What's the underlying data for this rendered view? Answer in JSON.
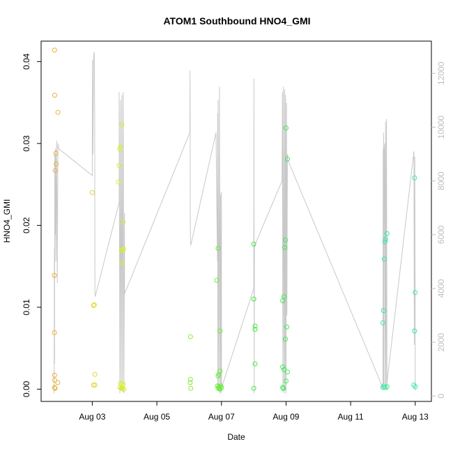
{
  "chart_data": {
    "type": "scatter",
    "title": "ATOM1 Southbound HNO4_GMI",
    "xlabel": "Date",
    "ylabel": "HNO4_GMI",
    "ylabel_right": "",
    "xlim": [
      "2016-08-01T10:00",
      "2016-08-13T12:00"
    ],
    "ylim": [
      -0.0015,
      0.0425
    ],
    "y2lim": [
      -200,
      13200
    ],
    "x_ticks": [
      {
        "value": "2016-08-03",
        "label": "Aug 03"
      },
      {
        "value": "2016-08-05",
        "label": "Aug 05"
      },
      {
        "value": "2016-08-07",
        "label": "Aug 07"
      },
      {
        "value": "2016-08-09",
        "label": "Aug 09"
      },
      {
        "value": "2016-08-11",
        "label": "Aug 11"
      },
      {
        "value": "2016-08-13",
        "label": "Aug 13"
      }
    ],
    "y_ticks": [
      {
        "value": 0.0,
        "label": "0.00"
      },
      {
        "value": 0.01,
        "label": "0.01"
      },
      {
        "value": 0.02,
        "label": "0.02"
      },
      {
        "value": 0.03,
        "label": "0.03"
      },
      {
        "value": 0.04,
        "label": "0.04"
      }
    ],
    "y2_ticks": [
      {
        "value": 0,
        "label": "0"
      },
      {
        "value": 2000,
        "label": "2000"
      },
      {
        "value": 4000,
        "label": "4000"
      },
      {
        "value": 6000,
        "label": "6000"
      },
      {
        "value": 8000,
        "label": "8000"
      },
      {
        "value": 10000,
        "label": "10000"
      },
      {
        "value": 12000,
        "label": "12000"
      }
    ],
    "grid": false,
    "colors": {
      "axis": "#000000",
      "right_axis": "#bdbdbd",
      "altitude_line": "#c8c8c8",
      "point_gradient_start": "#f0a040",
      "point_gradient_end": "#30e8c0"
    },
    "points": [
      {
        "x": "2016-08-01T20:00",
        "y": 0.0414
      },
      {
        "x": "2016-08-01T20:05",
        "y": 0.0359
      },
      {
        "x": "2016-08-01T22:30",
        "y": 0.0338
      },
      {
        "x": "2016-08-01T21:00",
        "y": 0.0288
      },
      {
        "x": "2016-08-01T21:10",
        "y": 0.0275
      },
      {
        "x": "2016-08-01T20:30",
        "y": 0.0267
      },
      {
        "x": "2016-08-01T19:50",
        "y": 0.0139
      },
      {
        "x": "2016-08-01T19:55",
        "y": 0.0069
      },
      {
        "x": "2016-08-01T20:00",
        "y": 0.0017
      },
      {
        "x": "2016-08-01T20:05",
        "y": 0.0011
      },
      {
        "x": "2016-08-01T22:20",
        "y": 0.0008
      },
      {
        "x": "2016-08-01T20:00",
        "y": 0.0002
      },
      {
        "x": "2016-08-01T20:20",
        "y": 0.0001
      },
      {
        "x": "2016-08-03T00:00",
        "y": 0.024
      },
      {
        "x": "2016-08-03T01:00",
        "y": 0.0102
      },
      {
        "x": "2016-08-03T01:30",
        "y": 0.0103
      },
      {
        "x": "2016-08-03T02:00",
        "y": 0.0018
      },
      {
        "x": "2016-08-03T01:00",
        "y": 0.0005
      },
      {
        "x": "2016-08-03T02:00",
        "y": 0.0005
      },
      {
        "x": "2016-08-03T22:00",
        "y": 0.0323
      },
      {
        "x": "2016-08-03T21:00",
        "y": 0.0296
      },
      {
        "x": "2016-08-03T20:30",
        "y": 0.0293
      },
      {
        "x": "2016-08-03T20:00",
        "y": 0.0273
      },
      {
        "x": "2016-08-03T19:30",
        "y": 0.0253
      },
      {
        "x": "2016-08-03T23:00",
        "y": 0.0204
      },
      {
        "x": "2016-08-03T21:30",
        "y": 0.0169
      },
      {
        "x": "2016-08-03T22:30",
        "y": 0.017
      },
      {
        "x": "2016-08-03T23:30",
        "y": 0.0171
      },
      {
        "x": "2016-08-03T22:00",
        "y": 0.0154
      },
      {
        "x": "2016-08-03T21:00",
        "y": 0.0007
      },
      {
        "x": "2016-08-03T22:00",
        "y": 0.0005
      },
      {
        "x": "2016-08-03T23:00",
        "y": 0.0006
      },
      {
        "x": "2016-08-03T20:30",
        "y": 0.0002
      },
      {
        "x": "2016-08-03T21:30",
        "y": 0.0001
      },
      {
        "x": "2016-08-03T22:30",
        "y": 0.0001
      },
      {
        "x": "2016-08-03T23:30",
        "y": 0.0
      },
      {
        "x": "2016-08-06T01:00",
        "y": 0.0064
      },
      {
        "x": "2016-08-06T01:00",
        "y": 0.0012
      },
      {
        "x": "2016-08-06T00:45",
        "y": 0.0008
      },
      {
        "x": "2016-08-06T01:15",
        "y": 0.0001
      },
      {
        "x": "2016-08-06T20:30",
        "y": 0.0133
      },
      {
        "x": "2016-08-06T21:30",
        "y": 0.0172
      },
      {
        "x": "2016-08-06T23:00",
        "y": 0.0071
      },
      {
        "x": "2016-08-06T22:00",
        "y": 0.0018
      },
      {
        "x": "2016-08-06T21:30",
        "y": 0.0016
      },
      {
        "x": "2016-08-06T23:00",
        "y": 0.0022
      },
      {
        "x": "2016-08-06T21:00",
        "y": 0.0004
      },
      {
        "x": "2016-08-06T22:00",
        "y": 0.0003
      },
      {
        "x": "2016-08-06T23:30",
        "y": 0.0004
      },
      {
        "x": "2016-08-07T00:00",
        "y": 0.0002
      },
      {
        "x": "2016-08-06T21:30",
        "y": 0.0001
      },
      {
        "x": "2016-08-06T22:30",
        "y": 0.0001
      },
      {
        "x": "2016-08-06T23:00",
        "y": 0.0
      },
      {
        "x": "2016-08-08T00:00",
        "y": 0.0177
      },
      {
        "x": "2016-08-08T00:00",
        "y": 0.011
      },
      {
        "x": "2016-08-08T01:00",
        "y": 0.0077
      },
      {
        "x": "2016-08-08T01:00",
        "y": 0.0073
      },
      {
        "x": "2016-08-08T01:00",
        "y": 0.0031
      },
      {
        "x": "2016-08-08T00:00",
        "y": 0.0001
      },
      {
        "x": "2016-08-09T00:00",
        "y": 0.0319
      },
      {
        "x": "2016-08-09T01:00",
        "y": 0.0281
      },
      {
        "x": "2016-08-08T23:30",
        "y": 0.0182
      },
      {
        "x": "2016-08-08T23:00",
        "y": 0.0173
      },
      {
        "x": "2016-08-08T22:30",
        "y": 0.0113
      },
      {
        "x": "2016-08-08T21:30",
        "y": 0.0108
      },
      {
        "x": "2016-08-09T00:30",
        "y": 0.0076
      },
      {
        "x": "2016-08-08T23:30",
        "y": 0.0061
      },
      {
        "x": "2016-08-08T21:30",
        "y": 0.0027
      },
      {
        "x": "2016-08-08T22:30",
        "y": 0.0024
      },
      {
        "x": "2016-08-09T01:00",
        "y": 0.0021
      },
      {
        "x": "2016-08-09T00:00",
        "y": 0.001
      },
      {
        "x": "2016-08-08T21:30",
        "y": 0.0002
      },
      {
        "x": "2016-08-08T22:00",
        "y": 0.0001
      },
      {
        "x": "2016-08-12T01:00",
        "y": 0.0159
      },
      {
        "x": "2016-08-12T00:30",
        "y": 0.0096
      },
      {
        "x": "2016-08-12T00:00",
        "y": 0.0081
      },
      {
        "x": "2016-08-12T03:00",
        "y": 0.019
      },
      {
        "x": "2016-08-12T02:00",
        "y": 0.0183
      },
      {
        "x": "2016-08-12T01:30",
        "y": 0.018
      },
      {
        "x": "2016-08-12T00:30",
        "y": 0.0004
      },
      {
        "x": "2016-08-12T03:00",
        "y": 0.0003
      },
      {
        "x": "2016-08-12T00:00",
        "y": 0.0002
      },
      {
        "x": "2016-08-12T01:30",
        "y": 0.0002
      },
      {
        "x": "2016-08-12T23:30",
        "y": 0.0258
      },
      {
        "x": "2016-08-13T00:00",
        "y": 0.0118
      },
      {
        "x": "2016-08-12T23:30",
        "y": 0.0071
      },
      {
        "x": "2016-08-12T23:00",
        "y": 0.0005
      },
      {
        "x": "2016-08-13T00:00",
        "y": 0.0003
      }
    ],
    "altitude": [
      [
        "2016-08-01T19:40",
        100
      ],
      [
        "2016-08-01T19:45",
        2000
      ],
      [
        "2016-08-01T19:50",
        5500
      ],
      [
        "2016-08-01T20:00",
        1200
      ],
      [
        "2016-08-01T20:10",
        9000
      ],
      [
        "2016-08-01T20:20",
        6000
      ],
      [
        "2016-08-01T20:40",
        9200
      ],
      [
        "2016-08-01T21:00",
        5000
      ],
      [
        "2016-08-01T21:30",
        9500
      ],
      [
        "2016-08-01T22:00",
        4200
      ],
      [
        "2016-08-01T22:30",
        9400
      ],
      [
        "2016-08-01T23:00",
        9200
      ],
      [
        "2016-08-03T00:00",
        8200
      ],
      [
        "2016-08-03T00:10",
        12500
      ],
      [
        "2016-08-03T00:30",
        9000
      ],
      [
        "2016-08-03T01:00",
        12600
      ],
      [
        "2016-08-03T01:30",
        12800
      ],
      [
        "2016-08-03T01:50",
        10000
      ],
      [
        "2016-08-03T02:00",
        3800
      ],
      [
        "2016-08-03T02:10",
        3700
      ],
      [
        "2016-08-03T20:00",
        7200
      ],
      [
        "2016-08-03T20:00",
        11300
      ],
      [
        "2016-08-03T20:30",
        100
      ],
      [
        "2016-08-03T21:00",
        11000
      ],
      [
        "2016-08-03T21:30",
        200
      ],
      [
        "2016-08-03T22:00",
        11200
      ],
      [
        "2016-08-03T22:30",
        150
      ],
      [
        "2016-08-03T23:00",
        11300
      ],
      [
        "2016-08-03T23:30",
        100
      ],
      [
        "2016-08-04T00:00",
        6800
      ],
      [
        "2016-08-04T00:00",
        3800
      ],
      [
        "2016-08-06T00:30",
        9800
      ],
      [
        "2016-08-06T00:40",
        12100
      ],
      [
        "2016-08-06T00:50",
        6800
      ],
      [
        "2016-08-06T01:00",
        5800
      ],
      [
        "2016-08-06T01:10",
        5600
      ],
      [
        "2016-08-06T20:00",
        9800
      ],
      [
        "2016-08-06T20:30",
        7200
      ],
      [
        "2016-08-06T21:00",
        5000
      ],
      [
        "2016-08-06T21:10",
        10500
      ],
      [
        "2016-08-06T21:20",
        300
      ],
      [
        "2016-08-06T21:30",
        11000
      ],
      [
        "2016-08-06T22:00",
        200
      ],
      [
        "2016-08-06T22:30",
        11500
      ],
      [
        "2016-08-06T23:00",
        100
      ],
      [
        "2016-08-06T23:20",
        7500
      ],
      [
        "2016-08-06T23:40",
        100
      ],
      [
        "2016-08-07T00:00",
        7600
      ],
      [
        "2016-08-07T00:00",
        300
      ],
      [
        "2016-08-08T00:00",
        4000
      ],
      [
        "2016-08-08T00:10",
        11800
      ],
      [
        "2016-08-08T00:20",
        100
      ],
      [
        "2016-08-08T00:30",
        5500
      ],
      [
        "2016-08-08T00:40",
        5600
      ],
      [
        "2016-08-08T21:00",
        8000
      ],
      [
        "2016-08-08T21:20",
        11300
      ],
      [
        "2016-08-08T21:40",
        150
      ],
      [
        "2016-08-08T22:00",
        11500
      ],
      [
        "2016-08-08T22:30",
        100
      ],
      [
        "2016-08-08T23:00",
        11400
      ],
      [
        "2016-08-08T23:20",
        200
      ],
      [
        "2016-08-08T23:40",
        11200
      ],
      [
        "2016-08-09T00:00",
        100
      ],
      [
        "2016-08-09T00:20",
        10900
      ],
      [
        "2016-08-09T00:40",
        3000
      ],
      [
        "2016-08-09T01:00",
        9000
      ],
      [
        "2016-08-09T01:10",
        8800
      ],
      [
        "2016-08-12T00:00",
        300
      ],
      [
        "2016-08-12T00:10",
        9200
      ],
      [
        "2016-08-12T00:20",
        300
      ],
      [
        "2016-08-12T00:30",
        9800
      ],
      [
        "2016-08-12T00:40",
        500
      ],
      [
        "2016-08-12T01:00",
        9100
      ],
      [
        "2016-08-12T01:20",
        9400
      ],
      [
        "2016-08-12T01:40",
        400
      ],
      [
        "2016-08-12T02:00",
        10200
      ],
      [
        "2016-08-12T02:20",
        300
      ],
      [
        "2016-08-12T02:40",
        10300
      ],
      [
        "2016-08-12T03:00",
        200
      ],
      [
        "2016-08-12T03:00",
        500
      ],
      [
        "2016-08-12T23:00",
        9100
      ],
      [
        "2016-08-12T23:20",
        1900
      ],
      [
        "2016-08-12T23:40",
        8900
      ],
      [
        "2016-08-13T00:00",
        2000
      ],
      [
        "2016-08-13T00:00",
        200
      ]
    ]
  }
}
